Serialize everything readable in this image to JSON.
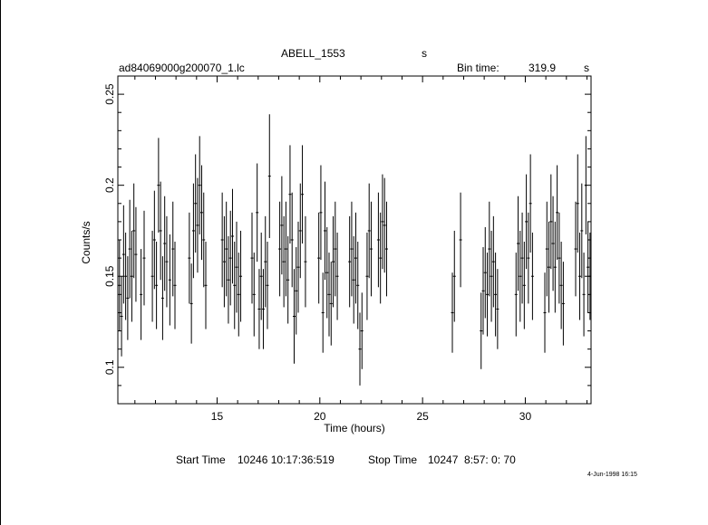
{
  "header": {
    "target": "ABELL_1553",
    "target_suffix": "s",
    "filename": "ad84069000g200070_1.lc",
    "bin_label": "Bin time:",
    "bin_value": "319.9",
    "bin_unit": "s"
  },
  "footer": {
    "start_label": "Start Time",
    "start_value": "10246 10:17:36:519",
    "stop_label": "Stop Time",
    "stop_value": "10247  8:57: 0: 70",
    "stamp": "4-Jun-1998 16:15"
  },
  "chart_data": {
    "type": "scatter",
    "xlabel": "Time (hours)",
    "ylabel": "Counts/s",
    "xlim": [
      10.17,
      33.2
    ],
    "ylim": [
      0.08,
      0.26
    ],
    "xticks": [
      15,
      20,
      25,
      30
    ],
    "yticks": [
      0.1,
      0.15,
      0.2,
      0.25
    ],
    "grid": false,
    "legend": "none",
    "series": [
      {
        "error_bars": true,
        "points": [
          {
            "x": 10.25,
            "y": 0.145,
            "e": 0.025
          },
          {
            "x": 10.35,
            "y": 0.128,
            "e": 0.022
          },
          {
            "x": 10.45,
            "y": 0.162,
            "e": 0.027
          },
          {
            "x": 10.55,
            "y": 0.15,
            "e": 0.024
          },
          {
            "x": 10.65,
            "y": 0.138,
            "e": 0.023
          },
          {
            "x": 10.75,
            "y": 0.165,
            "e": 0.027
          },
          {
            "x": 10.85,
            "y": 0.15,
            "e": 0.025
          },
          {
            "x": 10.95,
            "y": 0.175,
            "e": 0.026
          },
          {
            "x": 11.05,
            "y": 0.162,
            "e": 0.026
          },
          {
            "x": 11.3,
            "y": 0.14,
            "e": 0.025
          },
          {
            "x": 11.45,
            "y": 0.16,
            "e": 0.026
          },
          {
            "x": 11.85,
            "y": 0.15,
            "e": 0.025
          },
          {
            "x": 11.95,
            "y": 0.17,
            "e": 0.027
          },
          {
            "x": 12.05,
            "y": 0.145,
            "e": 0.024
          },
          {
            "x": 12.15,
            "y": 0.2,
            "e": 0.026
          },
          {
            "x": 12.25,
            "y": 0.175,
            "e": 0.027
          },
          {
            "x": 12.35,
            "y": 0.138,
            "e": 0.023
          },
          {
            "x": 12.45,
            "y": 0.168,
            "e": 0.026
          },
          {
            "x": 12.55,
            "y": 0.158,
            "e": 0.025
          },
          {
            "x": 12.7,
            "y": 0.148,
            "e": 0.025
          },
          {
            "x": 12.85,
            "y": 0.165,
            "e": 0.026
          },
          {
            "x": 12.95,
            "y": 0.145,
            "e": 0.024
          },
          {
            "x": 13.65,
            "y": 0.16,
            "e": 0.025
          },
          {
            "x": 13.75,
            "y": 0.135,
            "e": 0.022
          },
          {
            "x": 13.85,
            "y": 0.175,
            "e": 0.026
          },
          {
            "x": 13.95,
            "y": 0.19,
            "e": 0.027
          },
          {
            "x": 14.05,
            "y": 0.178,
            "e": 0.026
          },
          {
            "x": 14.15,
            "y": 0.2,
            "e": 0.027
          },
          {
            "x": 14.25,
            "y": 0.185,
            "e": 0.026
          },
          {
            "x": 14.35,
            "y": 0.17,
            "e": 0.026
          },
          {
            "x": 14.45,
            "y": 0.145,
            "e": 0.024
          },
          {
            "x": 15.25,
            "y": 0.17,
            "e": 0.026
          },
          {
            "x": 15.35,
            "y": 0.158,
            "e": 0.025
          },
          {
            "x": 15.45,
            "y": 0.165,
            "e": 0.026
          },
          {
            "x": 15.55,
            "y": 0.148,
            "e": 0.024
          },
          {
            "x": 15.65,
            "y": 0.16,
            "e": 0.026
          },
          {
            "x": 15.75,
            "y": 0.172,
            "e": 0.026
          },
          {
            "x": 15.85,
            "y": 0.145,
            "e": 0.024
          },
          {
            "x": 15.95,
            "y": 0.155,
            "e": 0.025
          },
          {
            "x": 16.05,
            "y": 0.14,
            "e": 0.023
          },
          {
            "x": 16.15,
            "y": 0.15,
            "e": 0.025
          },
          {
            "x": 16.7,
            "y": 0.16,
            "e": 0.025
          },
          {
            "x": 16.8,
            "y": 0.14,
            "e": 0.023
          },
          {
            "x": 16.95,
            "y": 0.185,
            "e": 0.027
          },
          {
            "x": 17.05,
            "y": 0.132,
            "e": 0.022
          },
          {
            "x": 17.15,
            "y": 0.15,
            "e": 0.024
          },
          {
            "x": 17.25,
            "y": 0.132,
            "e": 0.022
          },
          {
            "x": 17.35,
            "y": 0.158,
            "e": 0.025
          },
          {
            "x": 17.45,
            "y": 0.145,
            "e": 0.024
          },
          {
            "x": 17.55,
            "y": 0.205,
            "e": 0.034
          },
          {
            "x": 18.05,
            "y": 0.165,
            "e": 0.026
          },
          {
            "x": 18.15,
            "y": 0.178,
            "e": 0.027
          },
          {
            "x": 18.25,
            "y": 0.158,
            "e": 0.025
          },
          {
            "x": 18.35,
            "y": 0.165,
            "e": 0.026
          },
          {
            "x": 18.45,
            "y": 0.148,
            "e": 0.024
          },
          {
            "x": 18.55,
            "y": 0.195,
            "e": 0.027
          },
          {
            "x": 18.65,
            "y": 0.17,
            "e": 0.026
          },
          {
            "x": 18.75,
            "y": 0.128,
            "e": 0.026
          },
          {
            "x": 18.85,
            "y": 0.142,
            "e": 0.024
          },
          {
            "x": 18.95,
            "y": 0.155,
            "e": 0.025
          },
          {
            "x": 19.05,
            "y": 0.175,
            "e": 0.026
          },
          {
            "x": 19.15,
            "y": 0.195,
            "e": 0.027
          },
          {
            "x": 19.3,
            "y": 0.158,
            "e": 0.025
          },
          {
            "x": 19.95,
            "y": 0.16,
            "e": 0.025
          },
          {
            "x": 20.05,
            "y": 0.185,
            "e": 0.026
          },
          {
            "x": 20.15,
            "y": 0.13,
            "e": 0.022
          },
          {
            "x": 20.25,
            "y": 0.175,
            "e": 0.027
          },
          {
            "x": 20.35,
            "y": 0.152,
            "e": 0.025
          },
          {
            "x": 20.45,
            "y": 0.14,
            "e": 0.023
          },
          {
            "x": 20.55,
            "y": 0.135,
            "e": 0.023
          },
          {
            "x": 20.65,
            "y": 0.158,
            "e": 0.025
          },
          {
            "x": 20.75,
            "y": 0.165,
            "e": 0.026
          },
          {
            "x": 20.85,
            "y": 0.15,
            "e": 0.024
          },
          {
            "x": 21.45,
            "y": 0.158,
            "e": 0.025
          },
          {
            "x": 21.55,
            "y": 0.165,
            "e": 0.026
          },
          {
            "x": 21.65,
            "y": 0.148,
            "e": 0.024
          },
          {
            "x": 21.75,
            "y": 0.16,
            "e": 0.025
          },
          {
            "x": 21.85,
            "y": 0.145,
            "e": 0.024
          },
          {
            "x": 21.95,
            "y": 0.11,
            "e": 0.02
          },
          {
            "x": 22.05,
            "y": 0.12,
            "e": 0.021
          },
          {
            "x": 22.3,
            "y": 0.15,
            "e": 0.024
          },
          {
            "x": 22.4,
            "y": 0.175,
            "e": 0.026
          },
          {
            "x": 22.5,
            "y": 0.165,
            "e": 0.026
          },
          {
            "x": 22.85,
            "y": 0.17,
            "e": 0.026
          },
          {
            "x": 22.95,
            "y": 0.16,
            "e": 0.025
          },
          {
            "x": 23.05,
            "y": 0.18,
            "e": 0.026
          },
          {
            "x": 23.15,
            "y": 0.178,
            "e": 0.026
          },
          {
            "x": 23.25,
            "y": 0.165,
            "e": 0.026
          },
          {
            "x": 26.45,
            "y": 0.13,
            "e": 0.022
          },
          {
            "x": 26.55,
            "y": 0.15,
            "e": 0.025
          },
          {
            "x": 26.85,
            "y": 0.17,
            "e": 0.026
          },
          {
            "x": 27.85,
            "y": 0.12,
            "e": 0.021
          },
          {
            "x": 27.95,
            "y": 0.142,
            "e": 0.024
          },
          {
            "x": 28.05,
            "y": 0.152,
            "e": 0.025
          },
          {
            "x": 28.15,
            "y": 0.14,
            "e": 0.023
          },
          {
            "x": 28.25,
            "y": 0.165,
            "e": 0.026
          },
          {
            "x": 28.35,
            "y": 0.15,
            "e": 0.025
          },
          {
            "x": 28.45,
            "y": 0.158,
            "e": 0.025
          },
          {
            "x": 28.55,
            "y": 0.14,
            "e": 0.023
          },
          {
            "x": 28.65,
            "y": 0.132,
            "e": 0.022
          },
          {
            "x": 29.55,
            "y": 0.14,
            "e": 0.023
          },
          {
            "x": 29.65,
            "y": 0.168,
            "e": 0.026
          },
          {
            "x": 29.75,
            "y": 0.15,
            "e": 0.025
          },
          {
            "x": 29.85,
            "y": 0.16,
            "e": 0.025
          },
          {
            "x": 29.95,
            "y": 0.145,
            "e": 0.024
          },
          {
            "x": 30.05,
            "y": 0.18,
            "e": 0.026
          },
          {
            "x": 30.15,
            "y": 0.16,
            "e": 0.025
          },
          {
            "x": 30.25,
            "y": 0.19,
            "e": 0.027
          },
          {
            "x": 30.35,
            "y": 0.15,
            "e": 0.024
          },
          {
            "x": 30.95,
            "y": 0.13,
            "e": 0.022
          },
          {
            "x": 31.05,
            "y": 0.165,
            "e": 0.026
          },
          {
            "x": 31.15,
            "y": 0.155,
            "e": 0.025
          },
          {
            "x": 31.25,
            "y": 0.18,
            "e": 0.026
          },
          {
            "x": 31.35,
            "y": 0.168,
            "e": 0.026
          },
          {
            "x": 31.45,
            "y": 0.155,
            "e": 0.025
          },
          {
            "x": 31.55,
            "y": 0.185,
            "e": 0.026
          },
          {
            "x": 31.65,
            "y": 0.16,
            "e": 0.025
          },
          {
            "x": 31.75,
            "y": 0.145,
            "e": 0.024
          },
          {
            "x": 31.85,
            "y": 0.135,
            "e": 0.023
          },
          {
            "x": 32.45,
            "y": 0.165,
            "e": 0.026
          },
          {
            "x": 32.55,
            "y": 0.19,
            "e": 0.027
          },
          {
            "x": 32.65,
            "y": 0.15,
            "e": 0.024
          },
          {
            "x": 32.75,
            "y": 0.175,
            "e": 0.026
          },
          {
            "x": 32.85,
            "y": 0.14,
            "e": 0.023
          },
          {
            "x": 32.95,
            "y": 0.2,
            "e": 0.027
          },
          {
            "x": 33.05,
            "y": 0.155,
            "e": 0.025
          },
          {
            "x": 33.15,
            "y": 0.15,
            "e": 0.024
          }
        ]
      }
    ]
  }
}
